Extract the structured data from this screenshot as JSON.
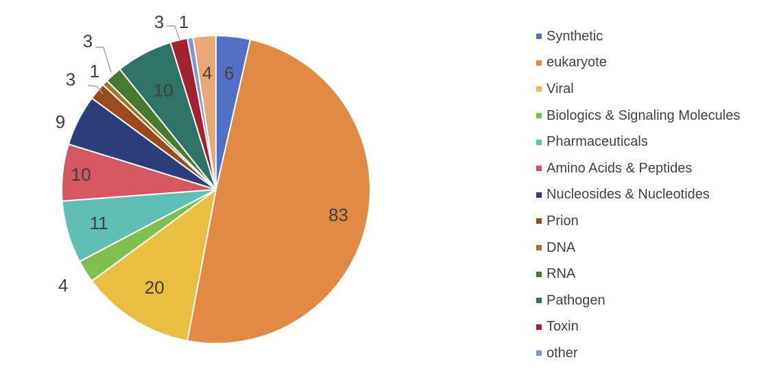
{
  "chart_data": {
    "type": "pie",
    "title": "",
    "start_angle_deg": 0,
    "direction": "clockwise",
    "legend_position": "right",
    "slices": [
      {
        "label": "Synthetic",
        "value": 6,
        "data_label": "6",
        "color": "#5470C6"
      },
      {
        "label": "eukaryote",
        "value": 83,
        "data_label": "83",
        "color": "#E08A43"
      },
      {
        "label": "Viral",
        "value": 20,
        "data_label": "20",
        "color": "#E9BE41"
      },
      {
        "label": "Biologics & Signaling Molecules",
        "value": 4,
        "data_label": "4",
        "color": "#7FBF4F"
      },
      {
        "label": "Pharmaceuticals",
        "value": 11,
        "data_label": "11",
        "color": "#5FBFB4"
      },
      {
        "label": "Amino Acids & Peptides",
        "value": 10,
        "data_label": "10",
        "color": "#D65762"
      },
      {
        "label": "Nucleosides & Nucleotides",
        "value": 9,
        "data_label": "9",
        "color": "#2D3F7A"
      },
      {
        "label": "Prion",
        "value": 3,
        "data_label": "3",
        "color": "#9B4A20"
      },
      {
        "label": "DNA",
        "value": 1,
        "data_label": "1",
        "color": "#9C7A22"
      },
      {
        "label": "RNA",
        "value": 3,
        "data_label": "3",
        "color": "#4A7A32"
      },
      {
        "label": "Pathogen",
        "value": 10,
        "data_label": "10",
        "color": "#2F7366"
      },
      {
        "label": "Toxin",
        "value": 3,
        "data_label": "3",
        "color": "#A3222F"
      },
      {
        "label": "other",
        "value": 1,
        "data_label": "1",
        "color": "#7D97D8"
      },
      {
        "label": "",
        "value": 4,
        "data_label": "4",
        "color": "#E8A774"
      }
    ]
  }
}
